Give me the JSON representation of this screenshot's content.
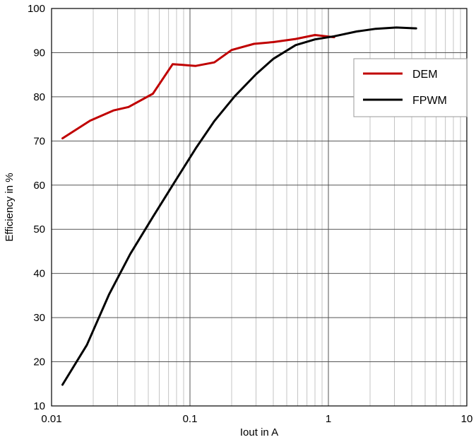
{
  "chart_data": {
    "type": "line",
    "title": "",
    "xlabel": "Iout in A",
    "ylabel": "Efficiency in %",
    "xscale": "log",
    "xlim": [
      0.01,
      10
    ],
    "ylim": [
      10,
      100
    ],
    "xticks": [
      0.01,
      0.1,
      1,
      10
    ],
    "xtick_labels": [
      "0.01",
      "0.1",
      "1",
      "10"
    ],
    "yticks": [
      10,
      20,
      30,
      40,
      50,
      60,
      70,
      80,
      90,
      100
    ],
    "ytick_labels": [
      "10",
      "20",
      "30",
      "40",
      "50",
      "60",
      "70",
      "80",
      "90",
      "100"
    ],
    "grid": true,
    "legend_position": "top-right",
    "series": [
      {
        "name": "DEM",
        "color": "#c00000",
        "x": [
          0.012,
          0.019,
          0.028,
          0.036,
          0.054,
          0.075,
          0.11,
          0.15,
          0.2,
          0.29,
          0.4,
          0.58,
          0.8,
          1.1
        ],
        "y": [
          70.6,
          74.6,
          76.9,
          77.7,
          80.7,
          87.4,
          87.0,
          87.8,
          90.6,
          92.0,
          92.4,
          93.1,
          94.0,
          93.5
        ]
      },
      {
        "name": "FPWM",
        "color": "#000000",
        "x": [
          0.012,
          0.018,
          0.026,
          0.037,
          0.054,
          0.075,
          0.11,
          0.15,
          0.21,
          0.3,
          0.4,
          0.58,
          0.8,
          1.1,
          1.6,
          2.2,
          3.1,
          4.3
        ],
        "y": [
          14.8,
          23.8,
          35.2,
          44.4,
          52.8,
          60.0,
          68.3,
          74.5,
          80.1,
          85.1,
          88.6,
          91.7,
          93.0,
          93.7,
          94.8,
          95.4,
          95.7,
          95.5
        ]
      }
    ]
  }
}
